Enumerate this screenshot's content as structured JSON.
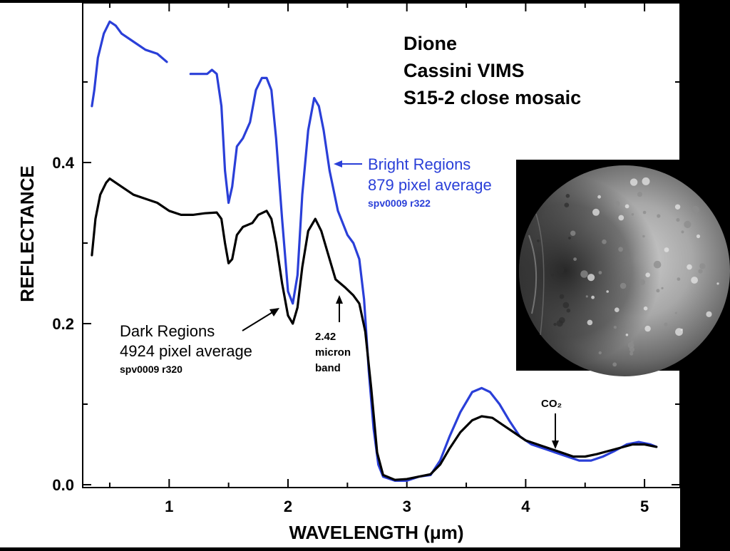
{
  "chart_data": {
    "type": "line",
    "title_lines": [
      "Dione",
      "Cassini VIMS",
      "S15-2 close mosaic"
    ],
    "xlabel": "WAVELENGTH (μm)",
    "ylabel": "REFLECTANCE",
    "xlim": [
      0.3,
      5.3
    ],
    "ylim": [
      0.0,
      0.6
    ],
    "x_ticks": [
      1,
      2,
      3,
      4,
      5
    ],
    "y_ticks": [
      0.0,
      0.2,
      0.4
    ],
    "x_tick_labels": [
      "1",
      "2",
      "3",
      "4",
      "5"
    ],
    "y_tick_labels": [
      "0.0",
      "0.2",
      "0.4"
    ],
    "grid": false,
    "series": [
      {
        "label_lines": [
          "Bright Regions",
          "879 pixel average"
        ],
        "sublabel": "spv0009 r322",
        "color": "#2a3fd8",
        "segments": [
          [
            [
              0.35,
              0.47
            ],
            [
              0.37,
              0.49
            ],
            [
              0.4,
              0.53
            ],
            [
              0.45,
              0.56
            ],
            [
              0.5,
              0.575
            ],
            [
              0.55,
              0.57
            ],
            [
              0.6,
              0.56
            ],
            [
              0.7,
              0.55
            ],
            [
              0.8,
              0.54
            ],
            [
              0.9,
              0.535
            ],
            [
              0.98,
              0.525
            ]
          ],
          [
            [
              1.18,
              0.51
            ],
            [
              1.25,
              0.51
            ],
            [
              1.32,
              0.51
            ],
            [
              1.36,
              0.515
            ],
            [
              1.4,
              0.51
            ],
            [
              1.44,
              0.47
            ],
            [
              1.47,
              0.39
            ],
            [
              1.5,
              0.35
            ],
            [
              1.53,
              0.37
            ],
            [
              1.57,
              0.42
            ],
            [
              1.62,
              0.43
            ],
            [
              1.68,
              0.45
            ],
            [
              1.73,
              0.49
            ],
            [
              1.78,
              0.505
            ],
            [
              1.82,
              0.505
            ],
            [
              1.86,
              0.49
            ],
            [
              1.9,
              0.43
            ],
            [
              1.95,
              0.33
            ],
            [
              2.0,
              0.24
            ],
            [
              2.04,
              0.225
            ],
            [
              2.08,
              0.26
            ],
            [
              2.12,
              0.36
            ],
            [
              2.17,
              0.44
            ],
            [
              2.22,
              0.48
            ],
            [
              2.26,
              0.47
            ],
            [
              2.3,
              0.44
            ],
            [
              2.35,
              0.39
            ],
            [
              2.42,
              0.34
            ],
            [
              2.5,
              0.31
            ],
            [
              2.55,
              0.3
            ],
            [
              2.6,
              0.28
            ],
            [
              2.64,
              0.23
            ],
            [
              2.68,
              0.14
            ],
            [
              2.72,
              0.07
            ],
            [
              2.76,
              0.025
            ],
            [
              2.8,
              0.01
            ],
            [
              2.9,
              0.005
            ],
            [
              3.0,
              0.005
            ],
            [
              3.1,
              0.01
            ],
            [
              3.2,
              0.012
            ],
            [
              3.28,
              0.03
            ],
            [
              3.36,
              0.06
            ],
            [
              3.45,
              0.09
            ],
            [
              3.55,
              0.115
            ],
            [
              3.63,
              0.12
            ],
            [
              3.7,
              0.115
            ],
            [
              3.78,
              0.1
            ],
            [
              3.86,
              0.08
            ],
            [
              3.95,
              0.06
            ],
            [
              4.05,
              0.05
            ],
            [
              4.15,
              0.045
            ],
            [
              4.25,
              0.04
            ],
            [
              4.35,
              0.035
            ],
            [
              4.45,
              0.03
            ],
            [
              4.55,
              0.03
            ],
            [
              4.65,
              0.035
            ],
            [
              4.75,
              0.042
            ],
            [
              4.85,
              0.05
            ],
            [
              4.95,
              0.053
            ],
            [
              5.05,
              0.05
            ],
            [
              5.1,
              0.047
            ]
          ]
        ]
      },
      {
        "label_lines": [
          "Dark Regions",
          "4924 pixel average"
        ],
        "sublabel": "spv0009 r320",
        "color": "#000000",
        "segments": [
          [
            [
              0.35,
              0.285
            ],
            [
              0.38,
              0.33
            ],
            [
              0.42,
              0.36
            ],
            [
              0.47,
              0.375
            ],
            [
              0.5,
              0.38
            ],
            [
              0.55,
              0.375
            ],
            [
              0.6,
              0.37
            ],
            [
              0.7,
              0.36
            ],
            [
              0.8,
              0.355
            ],
            [
              0.9,
              0.35
            ],
            [
              1.0,
              0.34
            ],
            [
              1.1,
              0.335
            ],
            [
              1.2,
              0.335
            ],
            [
              1.3,
              0.337
            ],
            [
              1.4,
              0.338
            ],
            [
              1.44,
              0.33
            ],
            [
              1.47,
              0.3
            ],
            [
              1.5,
              0.275
            ],
            [
              1.53,
              0.28
            ],
            [
              1.57,
              0.31
            ],
            [
              1.62,
              0.32
            ],
            [
              1.7,
              0.325
            ],
            [
              1.75,
              0.335
            ],
            [
              1.82,
              0.34
            ],
            [
              1.86,
              0.33
            ],
            [
              1.9,
              0.3
            ],
            [
              1.95,
              0.25
            ],
            [
              2.0,
              0.21
            ],
            [
              2.04,
              0.2
            ],
            [
              2.08,
              0.22
            ],
            [
              2.12,
              0.27
            ],
            [
              2.17,
              0.315
            ],
            [
              2.23,
              0.33
            ],
            [
              2.28,
              0.315
            ],
            [
              2.33,
              0.29
            ],
            [
              2.4,
              0.255
            ],
            [
              2.48,
              0.245
            ],
            [
              2.55,
              0.235
            ],
            [
              2.6,
              0.225
            ],
            [
              2.65,
              0.19
            ],
            [
              2.7,
              0.12
            ],
            [
              2.75,
              0.04
            ],
            [
              2.8,
              0.012
            ],
            [
              2.9,
              0.006
            ],
            [
              3.0,
              0.007
            ],
            [
              3.1,
              0.01
            ],
            [
              3.2,
              0.013
            ],
            [
              3.28,
              0.025
            ],
            [
              3.36,
              0.045
            ],
            [
              3.45,
              0.065
            ],
            [
              3.55,
              0.08
            ],
            [
              3.63,
              0.085
            ],
            [
              3.72,
              0.083
            ],
            [
              3.8,
              0.075
            ],
            [
              3.9,
              0.065
            ],
            [
              4.0,
              0.055
            ],
            [
              4.1,
              0.05
            ],
            [
              4.2,
              0.045
            ],
            [
              4.3,
              0.04
            ],
            [
              4.4,
              0.035
            ],
            [
              4.5,
              0.035
            ],
            [
              4.6,
              0.038
            ],
            [
              4.7,
              0.042
            ],
            [
              4.8,
              0.046
            ],
            [
              4.9,
              0.05
            ],
            [
              5.0,
              0.05
            ],
            [
              5.1,
              0.047
            ]
          ]
        ]
      }
    ],
    "annotations": [
      {
        "lines": [
          "2.42",
          "micron",
          "band"
        ],
        "x": 2.42,
        "y": 0.235
      },
      {
        "text": "CO₂",
        "x": 4.25,
        "y": 0.045
      }
    ]
  },
  "image_panel": {
    "subject": "Dione moon image"
  }
}
